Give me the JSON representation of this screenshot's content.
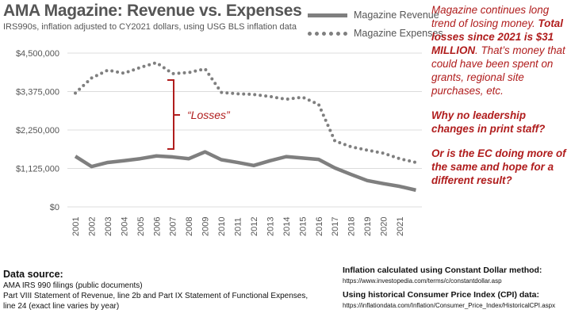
{
  "chart_data": {
    "type": "line",
    "title": "AMA Magazine: Revenue vs. Expenses",
    "subtitle": "IRS990s, inflation adjusted to CY2021 dollars, using USG BLS inflation data",
    "categories": [
      "2001",
      "2002",
      "2003",
      "2004",
      "2005",
      "2006",
      "2007",
      "2008",
      "2009",
      "2010",
      "2011",
      "2012",
      "2013",
      "2014",
      "2015",
      "2016",
      "2017",
      "2018",
      "2019",
      "2020",
      "2021",
      ""
    ],
    "ylim": [
      0,
      4500000
    ],
    "yticks": [
      "$0",
      "$1,125,000",
      "$2,250,000",
      "$3,375,000",
      "$4,500,000"
    ],
    "ytick_values": [
      0,
      1125000,
      2250000,
      3375000,
      4500000
    ],
    "grid": true,
    "legend_placement": "top-right",
    "series": [
      {
        "name": "Magazine Revenue",
        "style": "solid",
        "color": "#7f7f7f",
        "values": [
          1480000,
          1180000,
          1300000,
          1350000,
          1410000,
          1490000,
          1460000,
          1410000,
          1610000,
          1380000,
          1300000,
          1210000,
          1350000,
          1470000,
          1430000,
          1390000,
          1140000,
          950000,
          770000,
          680000,
          600000,
          490000
        ]
      },
      {
        "name": "Magazine Expenses",
        "style": "dotted",
        "color": "#7f7f7f",
        "values": [
          3330000,
          3770000,
          4000000,
          3910000,
          4080000,
          4220000,
          3900000,
          3930000,
          4040000,
          3350000,
          3310000,
          3290000,
          3230000,
          3150000,
          3210000,
          3000000,
          1930000,
          1760000,
          1660000,
          1570000,
          1410000,
          1300000
        ]
      }
    ],
    "annotations": {
      "losses_label": "“Losses”",
      "accent": "#b01d1d"
    }
  },
  "notes": {
    "p1a": "Magazine continues long trend of losing money. ",
    "p1b": "Total losses since 2021 is $31 MILLION",
    "p1c": ". That’s money that could have been spent on grants, regional site purchases, etc.",
    "p2": "Why no leadership changes in print staff?",
    "p3": "Or is the EC doing more of the same and hope for a different result?"
  },
  "footer": {
    "source_heading": "Data source:",
    "source_line1": "AMA IRS 990 filings (public documents)",
    "source_line2": "Part VIII Statement of Revenue, line 2b and Part IX Statement of Functional Expenses,",
    "source_line3": "line 24 (exact line varies by year)",
    "inflation_heading": "Inflation calculated using Constant Dollar method:",
    "inflation_url": "https://www.investopedia.com/terms/c/constantdollar.asp",
    "cpi_heading": "Using historical Consumer Price Index (CPI) data:",
    "cpi_url": "https://inflationdata.com/Inflation/Consumer_Price_Index/HistoricalCPI.aspx"
  }
}
